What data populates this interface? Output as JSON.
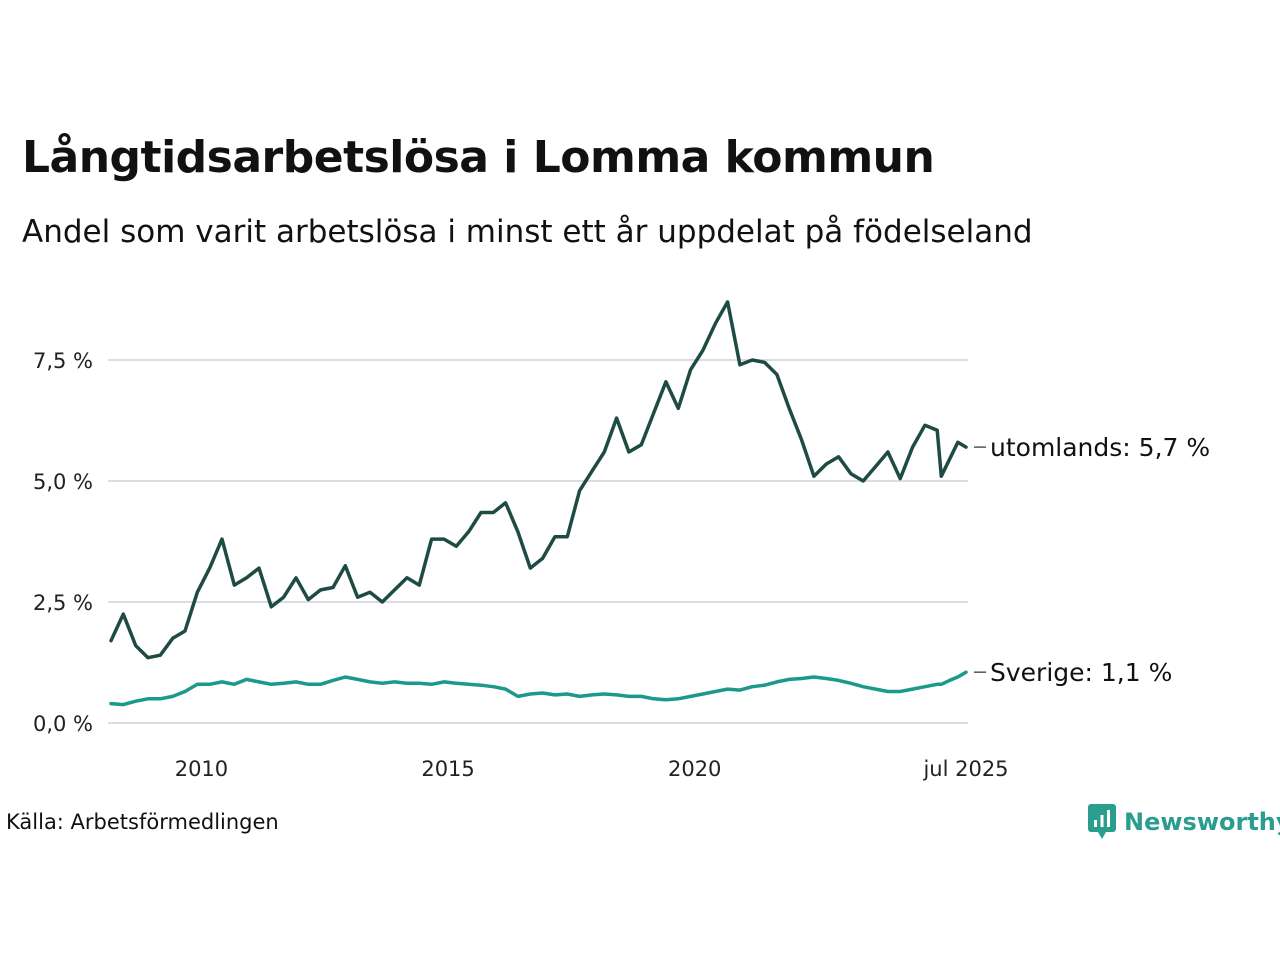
{
  "title": "Långtidsarbetslösa i Lomma kommun",
  "subtitle": "Andel som varit arbetslösa i minst ett år uppdelat på födelseland",
  "source": "Källa: Arbetsförmedlingen",
  "brand": {
    "name": "Newsworthy",
    "color": "#2a9d8f"
  },
  "chart_data": {
    "type": "line",
    "x_start": "2008-03",
    "x_end": "2025-07",
    "x_ticks": [
      {
        "date": "2010-01",
        "label": "2010"
      },
      {
        "date": "2015-01",
        "label": "2015"
      },
      {
        "date": "2020-01",
        "label": "2020"
      },
      {
        "date": "2025-07",
        "label": "jul 2025"
      }
    ],
    "y_ticks": [
      {
        "value": 0,
        "label": "0,0 %"
      },
      {
        "value": 2.5,
        "label": "2,5 %"
      },
      {
        "value": 5,
        "label": "5,0 %"
      },
      {
        "value": 7.5,
        "label": "7,5 %"
      }
    ],
    "ylim": [
      0,
      8.8
    ],
    "grid": true,
    "series": [
      {
        "name": "utomlands",
        "end_label": "utomlands: 5,7 %",
        "color": "#1f4b45",
        "points": [
          [
            "2008-03",
            1.7
          ],
          [
            "2008-06",
            2.25
          ],
          [
            "2008-09",
            1.6
          ],
          [
            "2008-12",
            1.35
          ],
          [
            "2009-03",
            1.4
          ],
          [
            "2009-06",
            1.75
          ],
          [
            "2009-09",
            1.9
          ],
          [
            "2009-12",
            2.7
          ],
          [
            "2010-03",
            3.2
          ],
          [
            "2010-06",
            3.8
          ],
          [
            "2010-09",
            2.85
          ],
          [
            "2010-12",
            3.0
          ],
          [
            "2011-03",
            3.2
          ],
          [
            "2011-06",
            2.4
          ],
          [
            "2011-09",
            2.6
          ],
          [
            "2011-12",
            3.0
          ],
          [
            "2012-03",
            2.55
          ],
          [
            "2012-06",
            2.75
          ],
          [
            "2012-09",
            2.8
          ],
          [
            "2012-12",
            3.25
          ],
          [
            "2013-03",
            2.6
          ],
          [
            "2013-06",
            2.7
          ],
          [
            "2013-09",
            2.5
          ],
          [
            "2013-12",
            2.75
          ],
          [
            "2014-03",
            3.0
          ],
          [
            "2014-06",
            2.85
          ],
          [
            "2014-09",
            3.8
          ],
          [
            "2014-12",
            3.8
          ],
          [
            "2015-03",
            3.65
          ],
          [
            "2015-06",
            3.95
          ],
          [
            "2015-09",
            4.35
          ],
          [
            "2015-12",
            4.35
          ],
          [
            "2016-03",
            4.55
          ],
          [
            "2016-06",
            3.95
          ],
          [
            "2016-09",
            3.2
          ],
          [
            "2016-12",
            3.4
          ],
          [
            "2017-03",
            3.85
          ],
          [
            "2017-06",
            3.85
          ],
          [
            "2017-09",
            4.8
          ],
          [
            "2017-12",
            5.2
          ],
          [
            "2018-03",
            5.6
          ],
          [
            "2018-06",
            6.3
          ],
          [
            "2018-09",
            5.6
          ],
          [
            "2018-12",
            5.75
          ],
          [
            "2019-03",
            6.4
          ],
          [
            "2019-06",
            7.05
          ],
          [
            "2019-09",
            6.5
          ],
          [
            "2019-12",
            7.3
          ],
          [
            "2020-03",
            7.7
          ],
          [
            "2020-06",
            8.25
          ],
          [
            "2020-09",
            8.7
          ],
          [
            "2020-12",
            7.4
          ],
          [
            "2021-03",
            7.5
          ],
          [
            "2021-06",
            7.45
          ],
          [
            "2021-09",
            7.2
          ],
          [
            "2021-12",
            6.5
          ],
          [
            "2022-03",
            5.85
          ],
          [
            "2022-06",
            5.1
          ],
          [
            "2022-09",
            5.35
          ],
          [
            "2022-12",
            5.5
          ],
          [
            "2023-03",
            5.15
          ],
          [
            "2023-06",
            5.0
          ],
          [
            "2023-09",
            5.3
          ],
          [
            "2023-12",
            5.6
          ],
          [
            "2024-03",
            5.05
          ],
          [
            "2024-06",
            5.7
          ],
          [
            "2024-09",
            6.15
          ],
          [
            "2024-12",
            6.05
          ],
          [
            "2025-01",
            5.1
          ],
          [
            "2025-03",
            5.45
          ],
          [
            "2025-05",
            5.8
          ],
          [
            "2025-07",
            5.7
          ]
        ]
      },
      {
        "name": "Sverige",
        "end_label": "Sverige: 1,1 %",
        "color": "#1b998b",
        "points": [
          [
            "2008-03",
            0.4
          ],
          [
            "2008-06",
            0.38
          ],
          [
            "2008-09",
            0.45
          ],
          [
            "2008-12",
            0.5
          ],
          [
            "2009-03",
            0.5
          ],
          [
            "2009-06",
            0.55
          ],
          [
            "2009-09",
            0.65
          ],
          [
            "2009-12",
            0.8
          ],
          [
            "2010-03",
            0.8
          ],
          [
            "2010-06",
            0.85
          ],
          [
            "2010-09",
            0.8
          ],
          [
            "2010-12",
            0.9
          ],
          [
            "2011-03",
            0.85
          ],
          [
            "2011-06",
            0.8
          ],
          [
            "2011-09",
            0.82
          ],
          [
            "2011-12",
            0.85
          ],
          [
            "2012-03",
            0.8
          ],
          [
            "2012-06",
            0.8
          ],
          [
            "2012-09",
            0.88
          ],
          [
            "2012-12",
            0.95
          ],
          [
            "2013-03",
            0.9
          ],
          [
            "2013-06",
            0.85
          ],
          [
            "2013-09",
            0.82
          ],
          [
            "2013-12",
            0.85
          ],
          [
            "2014-03",
            0.82
          ],
          [
            "2014-06",
            0.82
          ],
          [
            "2014-09",
            0.8
          ],
          [
            "2014-12",
            0.85
          ],
          [
            "2015-03",
            0.82
          ],
          [
            "2015-06",
            0.8
          ],
          [
            "2015-09",
            0.78
          ],
          [
            "2015-12",
            0.75
          ],
          [
            "2016-03",
            0.7
          ],
          [
            "2016-06",
            0.55
          ],
          [
            "2016-09",
            0.6
          ],
          [
            "2016-12",
            0.62
          ],
          [
            "2017-03",
            0.58
          ],
          [
            "2017-06",
            0.6
          ],
          [
            "2017-09",
            0.55
          ],
          [
            "2017-12",
            0.58
          ],
          [
            "2018-03",
            0.6
          ],
          [
            "2018-06",
            0.58
          ],
          [
            "2018-09",
            0.55
          ],
          [
            "2018-12",
            0.55
          ],
          [
            "2019-03",
            0.5
          ],
          [
            "2019-06",
            0.48
          ],
          [
            "2019-09",
            0.5
          ],
          [
            "2019-12",
            0.55
          ],
          [
            "2020-03",
            0.6
          ],
          [
            "2020-06",
            0.65
          ],
          [
            "2020-09",
            0.7
          ],
          [
            "2020-12",
            0.68
          ],
          [
            "2021-03",
            0.75
          ],
          [
            "2021-06",
            0.78
          ],
          [
            "2021-09",
            0.85
          ],
          [
            "2021-12",
            0.9
          ],
          [
            "2022-03",
            0.92
          ],
          [
            "2022-06",
            0.95
          ],
          [
            "2022-09",
            0.92
          ],
          [
            "2022-12",
            0.88
          ],
          [
            "2023-03",
            0.82
          ],
          [
            "2023-06",
            0.75
          ],
          [
            "2023-09",
            0.7
          ],
          [
            "2023-12",
            0.65
          ],
          [
            "2024-03",
            0.65
          ],
          [
            "2024-06",
            0.7
          ],
          [
            "2024-09",
            0.75
          ],
          [
            "2024-12",
            0.8
          ],
          [
            "2025-01",
            0.8
          ],
          [
            "2025-03",
            0.88
          ],
          [
            "2025-05",
            0.95
          ],
          [
            "2025-07",
            1.05
          ]
        ]
      }
    ]
  }
}
